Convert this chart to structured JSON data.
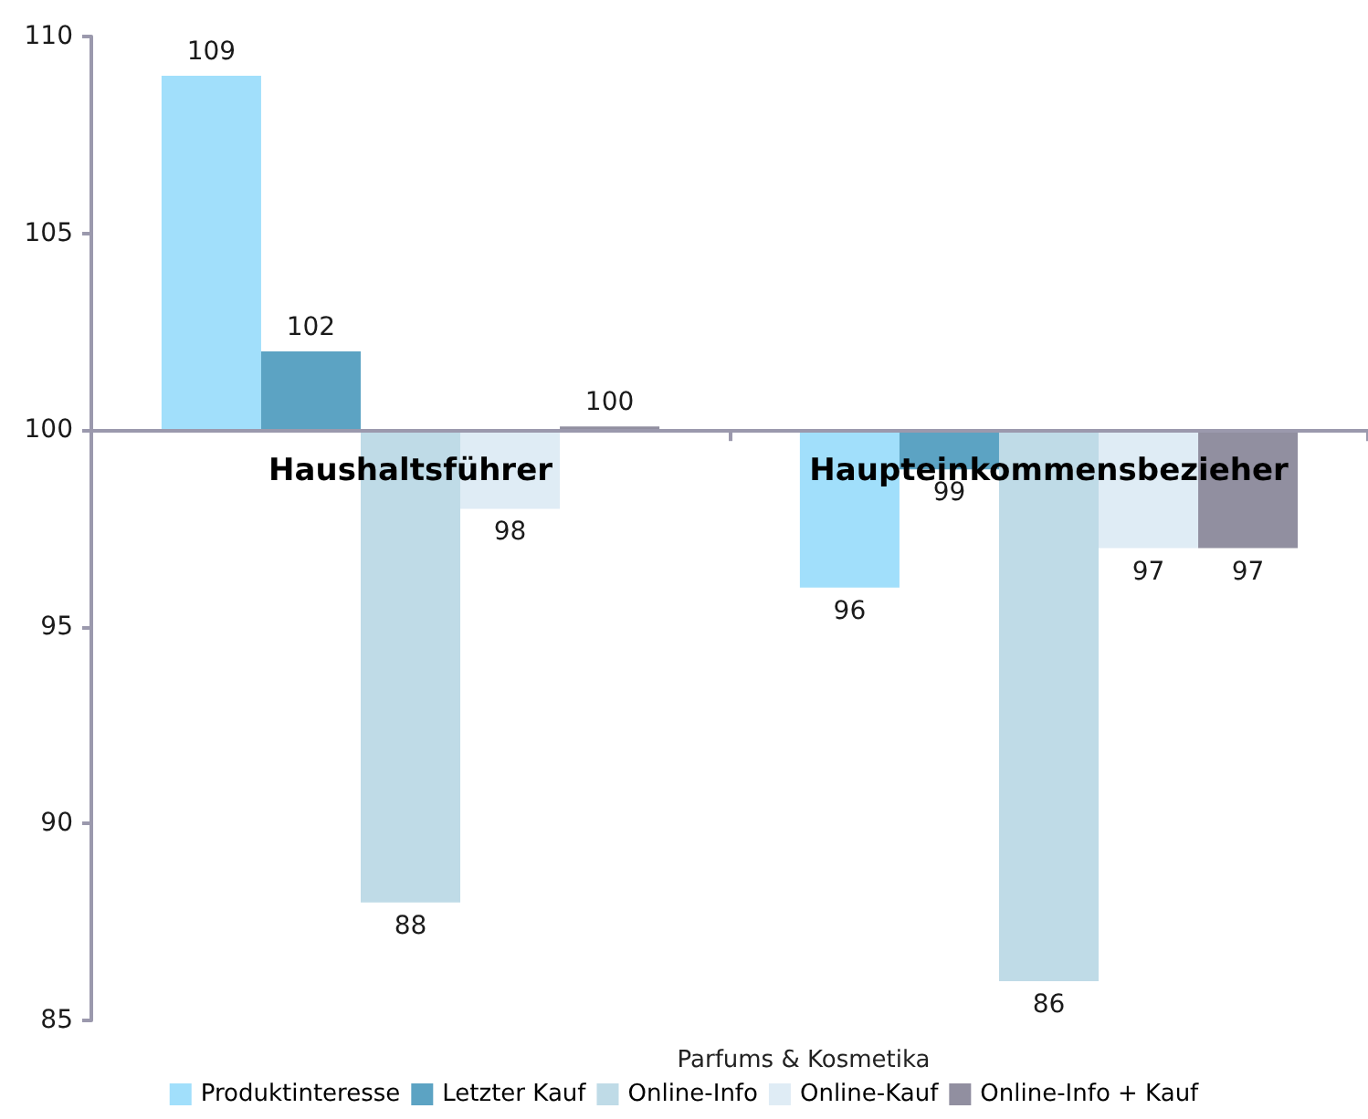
{
  "chart_data": {
    "type": "bar",
    "xlabel": "Parfums & Kosmetika",
    "categories": [
      "Haushaltsführer",
      "Haupteinkommensbezieher"
    ],
    "series": [
      {
        "name": "Produktinteresse",
        "color": "#a1dffb",
        "base": [
          100,
          100
        ],
        "values": [
          9,
          -4
        ],
        "value_labels": [
          "109",
          "96"
        ]
      },
      {
        "name": "Letzter Kauf",
        "color": "#5ca3c3",
        "base": [
          100,
          100
        ],
        "values": [
          2,
          -1
        ],
        "value_labels": [
          "102",
          "99"
        ]
      },
      {
        "name": "Online-Info",
        "color": "#bfdbe7",
        "base": [
          100,
          100
        ],
        "values": [
          -12,
          -14
        ],
        "value_labels": [
          "88",
          "86"
        ]
      },
      {
        "name": "Online-Kauf",
        "color": "#dfecf5",
        "base": [
          100,
          100
        ],
        "values": [
          -2,
          -3
        ],
        "value_labels": [
          "98",
          "97"
        ]
      },
      {
        "name": "Online-Info + Kauf",
        "color": "#918fa0",
        "base": [
          100,
          100
        ],
        "values": [
          0,
          -3
        ],
        "value_labels": [
          "100",
          "97"
        ]
      }
    ],
    "ylim": [
      85,
      110
    ],
    "yticks": [
      85,
      90,
      95,
      100,
      105,
      110
    ],
    "legend": "bottom"
  }
}
